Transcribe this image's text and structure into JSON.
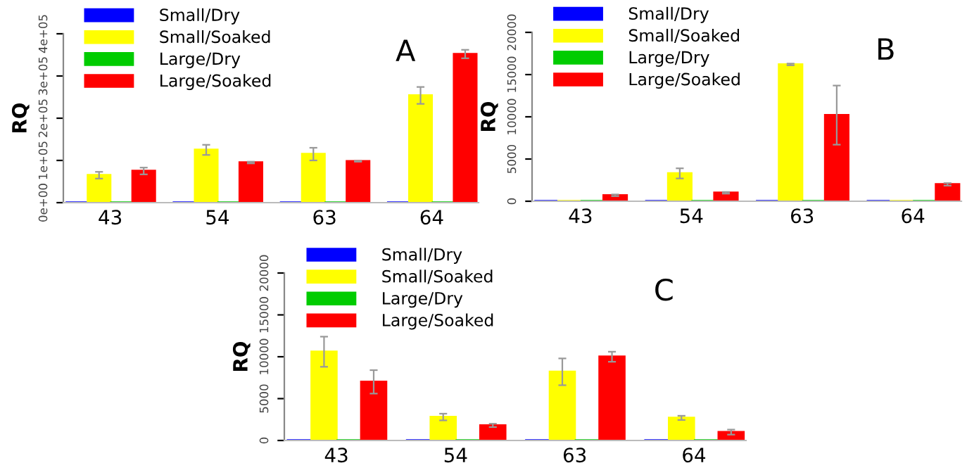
{
  "chart_data": [
    {
      "type": "bar",
      "title": "A",
      "ylabel": "RQ",
      "categories": [
        "43",
        "54",
        "63",
        "64"
      ],
      "ylim": [
        0,
        400000
      ],
      "yticks": [
        {
          "value": 0,
          "label": "0e+00"
        },
        {
          "value": 100000,
          "label": "1e+05"
        },
        {
          "value": 200000,
          "label": "2e+05"
        },
        {
          "value": 300000,
          "label": "3e+05"
        },
        {
          "value": 400000,
          "label": "4e+05"
        }
      ],
      "legend": "top left",
      "grid": false,
      "series": [
        {
          "name": "Small/Dry",
          "color": "#0000ff",
          "values": [
            0,
            0,
            0,
            0
          ]
        },
        {
          "name": "Small/Soaked",
          "color": "#ffff00",
          "values": [
            65000,
            125000,
            115000,
            254000
          ],
          "errors": [
            8000,
            12000,
            15000,
            20000
          ]
        },
        {
          "name": "Large/Dry",
          "color": "#00cc00",
          "values": [
            0,
            0,
            0,
            0
          ]
        },
        {
          "name": "Large/Soaked",
          "color": "#ff0000",
          "values": [
            75000,
            95000,
            98000,
            352000
          ],
          "errors": [
            8000,
            2000,
            1000,
            10000
          ]
        }
      ]
    },
    {
      "type": "bar",
      "title": "B",
      "ylabel": "RQ",
      "categories": [
        "43",
        "54",
        "63",
        "64"
      ],
      "ylim": [
        0,
        20000
      ],
      "yticks": [
        0,
        5000,
        10000,
        15000,
        20000
      ],
      "legend": "top left",
      "grid": false,
      "series": [
        {
          "name": "Small/Dry",
          "color": "#0000ff",
          "values": [
            0,
            0,
            0,
            0
          ]
        },
        {
          "name": "Small/Soaked",
          "color": "#ffff00",
          "values": [
            0,
            3300,
            16200,
            0
          ],
          "errors": [
            null,
            600,
            100,
            null
          ]
        },
        {
          "name": "Large/Dry",
          "color": "#00cc00",
          "values": [
            0,
            0,
            0,
            0
          ]
        },
        {
          "name": "Large/Soaked",
          "color": "#ff0000",
          "values": [
            700,
            1000,
            10200,
            2000
          ],
          "errors": [
            100,
            100,
            3500,
            150
          ]
        }
      ]
    },
    {
      "type": "bar",
      "title": "C",
      "ylabel": "RQ",
      "categories": [
        "43",
        "54",
        "63",
        "64"
      ],
      "ylim": [
        0,
        20000
      ],
      "yticks": [
        0,
        5000,
        10000,
        15000,
        20000
      ],
      "legend": "top left",
      "grid": false,
      "series": [
        {
          "name": "Small/Dry",
          "color": "#0000ff",
          "values": [
            0,
            0,
            0,
            0
          ]
        },
        {
          "name": "Small/Soaked",
          "color": "#ffff00",
          "values": [
            10600,
            2800,
            8200,
            2700
          ],
          "errors": [
            1800,
            400,
            1600,
            250
          ]
        },
        {
          "name": "Large/Dry",
          "color": "#00cc00",
          "values": [
            0,
            0,
            0,
            0
          ]
        },
        {
          "name": "Large/Soaked",
          "color": "#ff0000",
          "values": [
            7000,
            1800,
            10000,
            1000
          ],
          "errors": [
            1400,
            200,
            600,
            300
          ]
        }
      ]
    }
  ]
}
